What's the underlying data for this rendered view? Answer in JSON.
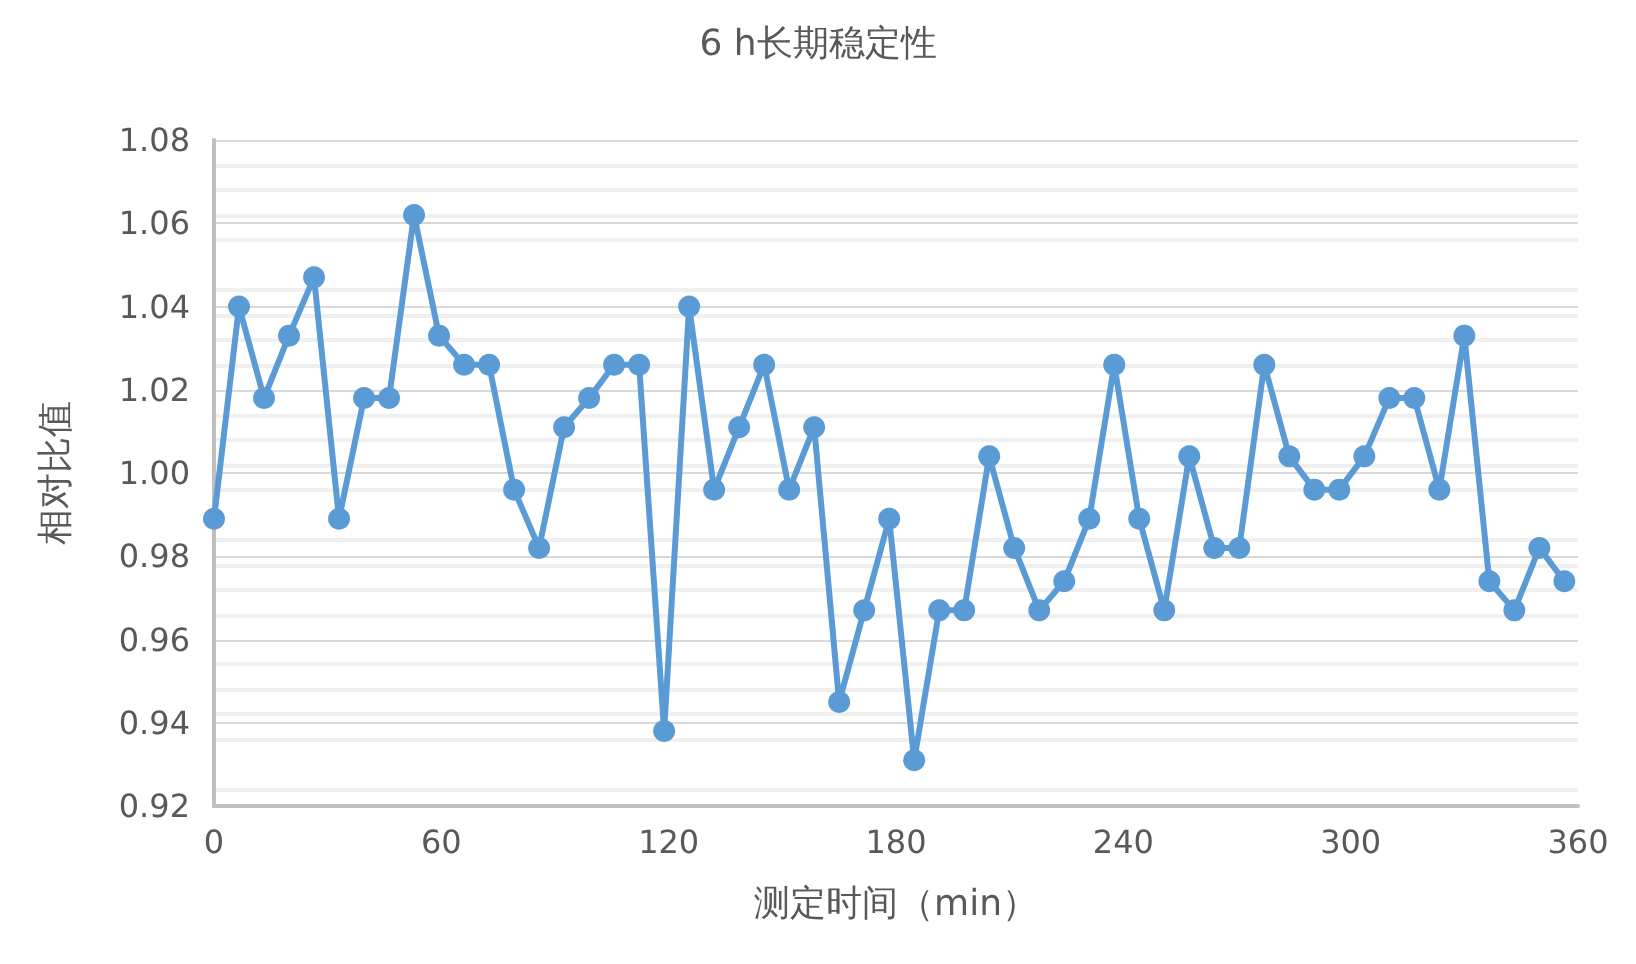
{
  "chart_data": {
    "type": "line",
    "title": "6 h长期稳定性",
    "xlabel": "测定时间（min）",
    "ylabel": "相对比值",
    "x": [
      0,
      6.6,
      13.2,
      19.8,
      26.4,
      33,
      39.6,
      46.2,
      52.8,
      59.4,
      66,
      72.6,
      79.2,
      85.8,
      92.4,
      99,
      105.6,
      112.2,
      118.8,
      125.4,
      132,
      138.6,
      145.2,
      151.8,
      158.4,
      165,
      171.6,
      178.2,
      184.8,
      191.4,
      198,
      204.6,
      211.2,
      217.8,
      224.4,
      231,
      237.6,
      244.2,
      250.8,
      257.4,
      264,
      270.6,
      277.2,
      283.8,
      290.4,
      297,
      303.6,
      310.2,
      316.8,
      323.4,
      330,
      336.6,
      343.2,
      349.8,
      356.4
    ],
    "series": [
      {
        "color": "#5b9bd5",
        "values": [
          0.989,
          1.04,
          1.018,
          1.033,
          1.047,
          0.989,
          1.018,
          1.018,
          1.062,
          1.033,
          1.026,
          1.026,
          0.996,
          0.982,
          1.011,
          1.018,
          1.026,
          1.026,
          0.938,
          1.04,
          0.996,
          1.011,
          1.026,
          0.996,
          1.011,
          0.945,
          0.967,
          0.989,
          0.931,
          0.967,
          0.967,
          1.004,
          0.982,
          0.967,
          0.974,
          0.989,
          1.026,
          0.989,
          0.967,
          1.004,
          0.982,
          0.982,
          1.026,
          1.004,
          0.996,
          0.996,
          1.004,
          1.018,
          1.018,
          0.996,
          1.033,
          0.974,
          0.967,
          0.982,
          0.974
        ]
      }
    ],
    "xlim": [
      0,
      360
    ],
    "xticks": [
      0,
      60,
      120,
      180,
      240,
      300,
      360
    ],
    "ylim": [
      0.92,
      1.08
    ],
    "yticks": [
      0.92,
      0.94,
      0.96,
      0.98,
      {
        "value": 1,
        "label": "1.00"
      },
      1.02,
      1.04,
      1.06,
      1.08
    ],
    "grid": "y",
    "marker": "circle",
    "line_style": "solid"
  }
}
